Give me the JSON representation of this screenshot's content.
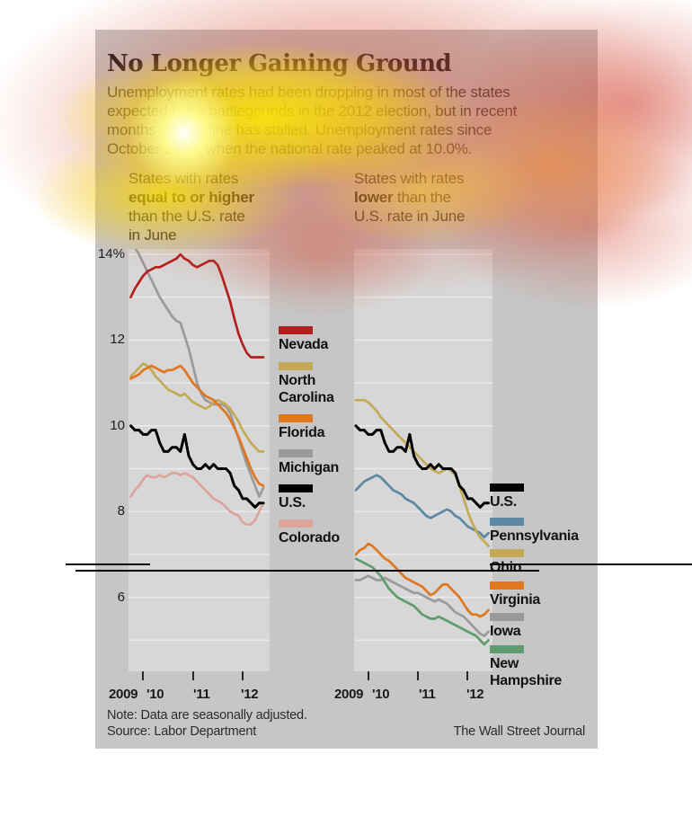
{
  "card": {
    "title": "No Longer Gaining Ground",
    "subtitle_lines": [
      "Unemployment rates had been dropping in most of the states",
      "expected to be battlegounds in the 2012 election, but in recent",
      "months the decline has stalled. Unemployment rates since",
      "October 2009, when the national rate peaked at 10.0%."
    ],
    "note": "Note: Data are seasonally adjusted.",
    "source": "Source: Labor Department",
    "credit": "The Wall Street Journal"
  },
  "panel_headers": [
    {
      "lines": [
        [
          {
            "t": "States with rates"
          }
        ],
        [
          {
            "t": "equal to or higher",
            "b": 1
          }
        ],
        [
          {
            "t": "than the U.S. rate"
          }
        ],
        [
          {
            "t": "in June"
          }
        ]
      ]
    },
    {
      "lines": [
        [
          {
            "t": "States with rates"
          }
        ],
        [
          {
            "t": "lower",
            "b": 1
          },
          {
            "t": " than the"
          }
        ],
        [
          {
            "t": "U.S. rate in June"
          }
        ]
      ]
    }
  ],
  "heatmap_overlay": {
    "present": true,
    "hot_color": "#ffee00",
    "warm_color": "#d64a2e"
  },
  "chart_data": [
    {
      "type": "line",
      "panel_title": "States with rates equal to or higher than the U.S. rate in June",
      "x_unit": "monthly",
      "x_start": "Oct. 2009",
      "x_end": "June 2012",
      "x_tick_labels": [
        "2009",
        "'10",
        "'11",
        "'12"
      ],
      "y_ticks": [
        {
          "v": 14,
          "label": "14%"
        },
        {
          "v": 12,
          "label": "12"
        },
        {
          "v": 10,
          "label": "10"
        },
        {
          "v": 8,
          "label": "8"
        },
        {
          "v": 6,
          "label": "6"
        }
      ],
      "ylim": [
        4.3,
        14.1
      ],
      "grid_values": [
        14,
        13,
        12,
        11,
        10,
        9,
        8,
        7,
        6,
        5
      ],
      "series": [
        {
          "name": "Nevada",
          "label_lines": [
            "Nevada"
          ],
          "color": "#b1201e",
          "values": [
            13.0,
            13.2,
            13.35,
            13.5,
            13.6,
            13.65,
            13.7,
            13.7,
            13.75,
            13.8,
            13.85,
            13.9,
            14.0,
            13.9,
            13.85,
            13.75,
            13.7,
            13.75,
            13.8,
            13.85,
            13.85,
            13.75,
            13.5,
            13.2,
            12.9,
            12.5,
            12.15,
            11.9,
            11.7,
            11.6,
            11.6,
            11.6,
            11.6
          ]
        },
        {
          "name": "North Carolina",
          "label_lines": [
            "North",
            "Carolina"
          ],
          "color": "#c2aa55",
          "values": [
            11.15,
            11.25,
            11.35,
            11.45,
            11.4,
            11.3,
            11.15,
            11.05,
            10.95,
            10.85,
            10.8,
            10.75,
            10.7,
            10.75,
            10.65,
            10.55,
            10.5,
            10.45,
            10.4,
            10.45,
            10.55,
            10.6,
            10.55,
            10.5,
            10.4,
            10.25,
            10.1,
            9.9,
            9.75,
            9.6,
            9.5,
            9.4,
            9.4
          ]
        },
        {
          "name": "Florida",
          "label_lines": [
            "Florida"
          ],
          "color": "#e0761e",
          "values": [
            11.1,
            11.15,
            11.2,
            11.3,
            11.35,
            11.4,
            11.35,
            11.3,
            11.25,
            11.3,
            11.3,
            11.35,
            11.4,
            11.3,
            11.15,
            11.0,
            10.9,
            10.8,
            10.7,
            10.65,
            10.6,
            10.5,
            10.4,
            10.3,
            10.15,
            9.95,
            9.75,
            9.5,
            9.25,
            9.0,
            8.8,
            8.65,
            8.6
          ]
        },
        {
          "name": "Michigan",
          "label_lines": [
            "Michigan"
          ],
          "color": "#9a9a9a",
          "values": [
            14.3,
            14.15,
            14.0,
            13.8,
            13.6,
            13.4,
            13.2,
            13.0,
            12.85,
            12.7,
            12.55,
            12.45,
            12.4,
            12.1,
            11.8,
            11.4,
            11.0,
            10.75,
            10.6,
            10.55,
            10.5,
            10.5,
            10.5,
            10.45,
            10.3,
            10.0,
            9.7,
            9.4,
            9.1,
            8.85,
            8.6,
            8.35,
            8.55
          ]
        },
        {
          "name": "U.S.",
          "label_lines": [
            "U.S."
          ],
          "color": "#000000",
          "values": [
            10.0,
            9.9,
            9.9,
            9.8,
            9.8,
            9.9,
            9.9,
            9.6,
            9.4,
            9.4,
            9.5,
            9.5,
            9.4,
            9.8,
            9.3,
            9.1,
            9.0,
            9.0,
            9.1,
            9.0,
            9.1,
            9.0,
            9.0,
            9.0,
            8.9,
            8.6,
            8.5,
            8.3,
            8.3,
            8.2,
            8.1,
            8.2,
            8.2
          ]
        },
        {
          "name": "Colorado",
          "label_lines": [
            "Colorado"
          ],
          "color": "#dca49b",
          "values": [
            8.35,
            8.5,
            8.6,
            8.75,
            8.85,
            8.8,
            8.8,
            8.85,
            8.8,
            8.85,
            8.9,
            8.9,
            8.85,
            8.9,
            8.85,
            8.8,
            8.7,
            8.6,
            8.5,
            8.4,
            8.3,
            8.25,
            8.2,
            8.1,
            8.0,
            7.95,
            7.9,
            7.75,
            7.7,
            7.7,
            7.8,
            8.0,
            8.2
          ]
        }
      ]
    },
    {
      "type": "line",
      "panel_title": "States with rates lower than the U.S. rate in June",
      "x_unit": "monthly",
      "x_start": "Oct. 2009",
      "x_end": "June 2012",
      "x_tick_labels": [
        "2009",
        "'10",
        "'11",
        "'12"
      ],
      "y_ticks": [],
      "shares_y_axis": true,
      "ylim": [
        4.3,
        14.1
      ],
      "grid_values": [
        14,
        13,
        12,
        11,
        10,
        9,
        8,
        7,
        6,
        5
      ],
      "series": [
        {
          "name": "U.S.",
          "label_lines": [
            "U.S."
          ],
          "color": "#000000",
          "values": [
            10.0,
            9.9,
            9.9,
            9.8,
            9.8,
            9.9,
            9.9,
            9.6,
            9.4,
            9.4,
            9.5,
            9.5,
            9.4,
            9.8,
            9.3,
            9.1,
            9.0,
            9.0,
            9.1,
            9.0,
            9.1,
            9.0,
            9.0,
            9.0,
            8.9,
            8.6,
            8.5,
            8.3,
            8.3,
            8.2,
            8.1,
            8.2,
            8.2
          ]
        },
        {
          "name": "Pennsylvania",
          "label_lines": [
            "Pennsylvania"
          ],
          "color": "#5c88a3",
          "values": [
            8.5,
            8.6,
            8.7,
            8.75,
            8.8,
            8.85,
            8.8,
            8.7,
            8.6,
            8.5,
            8.45,
            8.4,
            8.3,
            8.25,
            8.2,
            8.1,
            8.0,
            7.9,
            7.85,
            7.9,
            7.95,
            8.0,
            8.05,
            8.0,
            7.9,
            7.85,
            7.75,
            7.65,
            7.6,
            7.55,
            7.5,
            7.4,
            7.5
          ]
        },
        {
          "name": "Ohio",
          "label_lines": [
            "Ohio"
          ],
          "color": "#c2aa55",
          "values": [
            10.6,
            10.6,
            10.6,
            10.55,
            10.45,
            10.35,
            10.2,
            10.1,
            10.0,
            9.9,
            9.8,
            9.7,
            9.6,
            9.5,
            9.4,
            9.3,
            9.2,
            9.1,
            9.0,
            8.95,
            8.9,
            8.95,
            9.0,
            8.95,
            8.85,
            8.6,
            8.3,
            8.0,
            7.75,
            7.55,
            7.4,
            7.3,
            7.2
          ]
        },
        {
          "name": "Virginia",
          "label_lines": [
            "Virginia"
          ],
          "color": "#e0761e",
          "values": [
            7.0,
            7.1,
            7.15,
            7.25,
            7.2,
            7.1,
            7.0,
            6.9,
            6.85,
            6.75,
            6.65,
            6.55,
            6.45,
            6.4,
            6.35,
            6.3,
            6.25,
            6.15,
            6.05,
            6.1,
            6.2,
            6.3,
            6.3,
            6.2,
            6.1,
            6.0,
            5.85,
            5.7,
            5.6,
            5.6,
            5.55,
            5.6,
            5.7
          ]
        },
        {
          "name": "Iowa",
          "label_lines": [
            "Iowa"
          ],
          "color": "#9a9a9a",
          "values": [
            6.4,
            6.4,
            6.45,
            6.5,
            6.45,
            6.4,
            6.4,
            6.45,
            6.4,
            6.35,
            6.3,
            6.25,
            6.2,
            6.15,
            6.1,
            6.1,
            6.05,
            6.0,
            5.95,
            5.9,
            5.95,
            5.9,
            5.85,
            5.75,
            5.65,
            5.6,
            5.55,
            5.45,
            5.35,
            5.25,
            5.15,
            5.1,
            5.2
          ]
        },
        {
          "name": "New Hampshire",
          "label_lines": [
            "New",
            "Hampshire"
          ],
          "color": "#5f9c6e",
          "values": [
            6.9,
            6.85,
            6.8,
            6.75,
            6.7,
            6.6,
            6.5,
            6.35,
            6.2,
            6.1,
            6.0,
            5.95,
            5.9,
            5.85,
            5.8,
            5.7,
            5.6,
            5.55,
            5.5,
            5.5,
            5.55,
            5.5,
            5.45,
            5.4,
            5.35,
            5.3,
            5.25,
            5.2,
            5.15,
            5.1,
            5.0,
            4.9,
            5.0
          ]
        }
      ]
    }
  ]
}
